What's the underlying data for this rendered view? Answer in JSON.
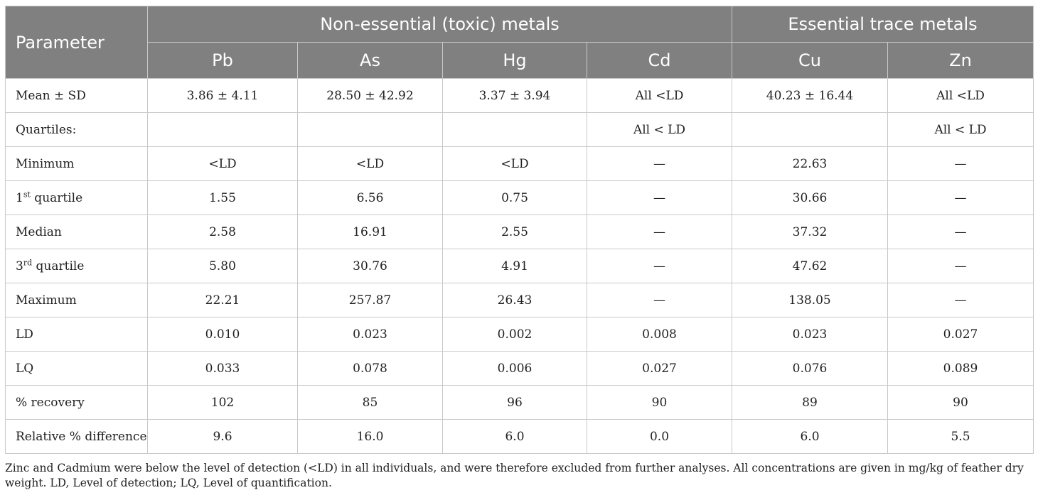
{
  "header": {
    "parameter": "Parameter",
    "group_toxic": "Non-essential (toxic) metals",
    "group_essential": "Essential trace metals",
    "metals": [
      "Pb",
      "As",
      "Hg",
      "Cd",
      "Cu",
      "Zn"
    ]
  },
  "rows": [
    {
      "label": "Mean ± SD",
      "cells": [
        "3.86 ± 4.11",
        "28.50 ± 42.92",
        "3.37 ± 3.94",
        "All <LD",
        "40.23 ± 16.44",
        "All <LD"
      ]
    },
    {
      "label": "Quartiles:",
      "cells": [
        "",
        "",
        "",
        "All < LD",
        "",
        "All < LD"
      ]
    },
    {
      "label": "Minimum",
      "cells": [
        "<LD",
        "<LD",
        "<LD",
        "—",
        "22.63",
        "—"
      ]
    },
    {
      "label": "1",
      "sup": "st",
      "label_suffix": " quartile",
      "cells": [
        "1.55",
        "6.56",
        "0.75",
        "—",
        "30.66",
        "—"
      ]
    },
    {
      "label": "Median",
      "cells": [
        "2.58",
        "16.91",
        "2.55",
        "—",
        "37.32",
        "—"
      ]
    },
    {
      "label": "3",
      "sup": "rd",
      "label_suffix": " quartile",
      "cells": [
        "5.80",
        "30.76",
        "4.91",
        "—",
        "47.62",
        "—"
      ]
    },
    {
      "label": "Maximum",
      "cells": [
        "22.21",
        "257.87",
        "26.43",
        "—",
        "138.05",
        "—"
      ]
    },
    {
      "label": "LD",
      "cells": [
        "0.010",
        "0.023",
        "0.002",
        "0.008",
        "0.023",
        "0.027"
      ]
    },
    {
      "label": "LQ",
      "cells": [
        "0.033",
        "0.078",
        "0.006",
        "0.027",
        "0.076",
        "0.089"
      ]
    },
    {
      "label": "% recovery",
      "cells": [
        "102",
        "85",
        "96",
        "90",
        "89",
        "90"
      ]
    },
    {
      "label": "Relative % difference",
      "cells": [
        "9.6",
        "16.0",
        "6.0",
        "0.0",
        "6.0",
        "5.5"
      ]
    }
  ],
  "footnote": "Zinc and Cadmium were below the level of detection (<LD) in all individuals, and were therefore excluded from further analyses. All concentrations are given in mg/kg of feather dry weight. LD, Level of detection; LQ, Level of quantification."
}
